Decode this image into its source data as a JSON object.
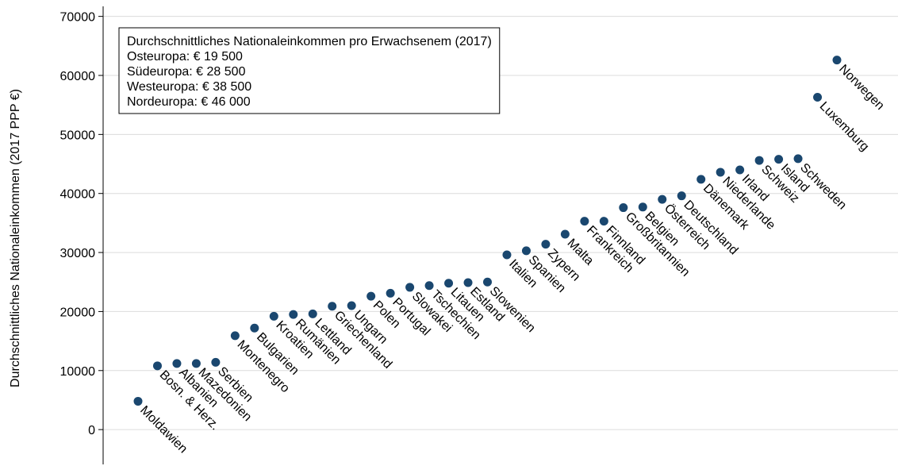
{
  "chart_data": {
    "type": "dot",
    "y_label": "Durchschnittliches Nationaleinkommen (2017 PPP €)",
    "annotation": [
      "Durchschnittliches Nationaleinkommen pro Erwachsenem (2017)",
      "Osteuropa: € 19 500",
      "Südeuropa: € 28 500",
      "Westeuropa: € 38 500",
      "Nordeuropa: € 46 000"
    ],
    "categories": [
      "Moldawien",
      "Bosn. & Herz.",
      "Albanien",
      "Mazedonien",
      "Serbien",
      "Montenegro",
      "Bulgarien",
      "Kroatien",
      "Rumänien",
      "Lettland",
      "Griechenland",
      "Ungarn",
      "Polen",
      "Portugal",
      "Slowakei",
      "Tschechien",
      "Litauen",
      "Estland",
      "Slowenien",
      "Italien",
      "Spanien",
      "Zypern",
      "Malta",
      "Frankreich",
      "Finnland",
      "Großbritannien",
      "Belgien",
      "Österreich",
      "Deutschland",
      "Dänemark",
      "Niederlande",
      "Irland",
      "Schweiz",
      "Island",
      "Schweden",
      "Luxemburg",
      "Norwegen"
    ],
    "values": [
      4800,
      10800,
      11200,
      11200,
      11400,
      15900,
      17200,
      19200,
      19500,
      19600,
      20900,
      21000,
      22600,
      23100,
      24100,
      24400,
      24800,
      24900,
      25000,
      29600,
      30300,
      31400,
      33100,
      35300,
      35300,
      37600,
      37700,
      39000,
      39600,
      42400,
      43600,
      44000,
      45600,
      45800,
      45900,
      56300,
      62600
    ],
    "color": "#1a476f",
    "ylim": [
      -5900,
      71700
    ],
    "yticks": [
      0,
      10000,
      20000,
      30000,
      40000,
      50000,
      60000,
      70000
    ],
    "grid": true
  }
}
